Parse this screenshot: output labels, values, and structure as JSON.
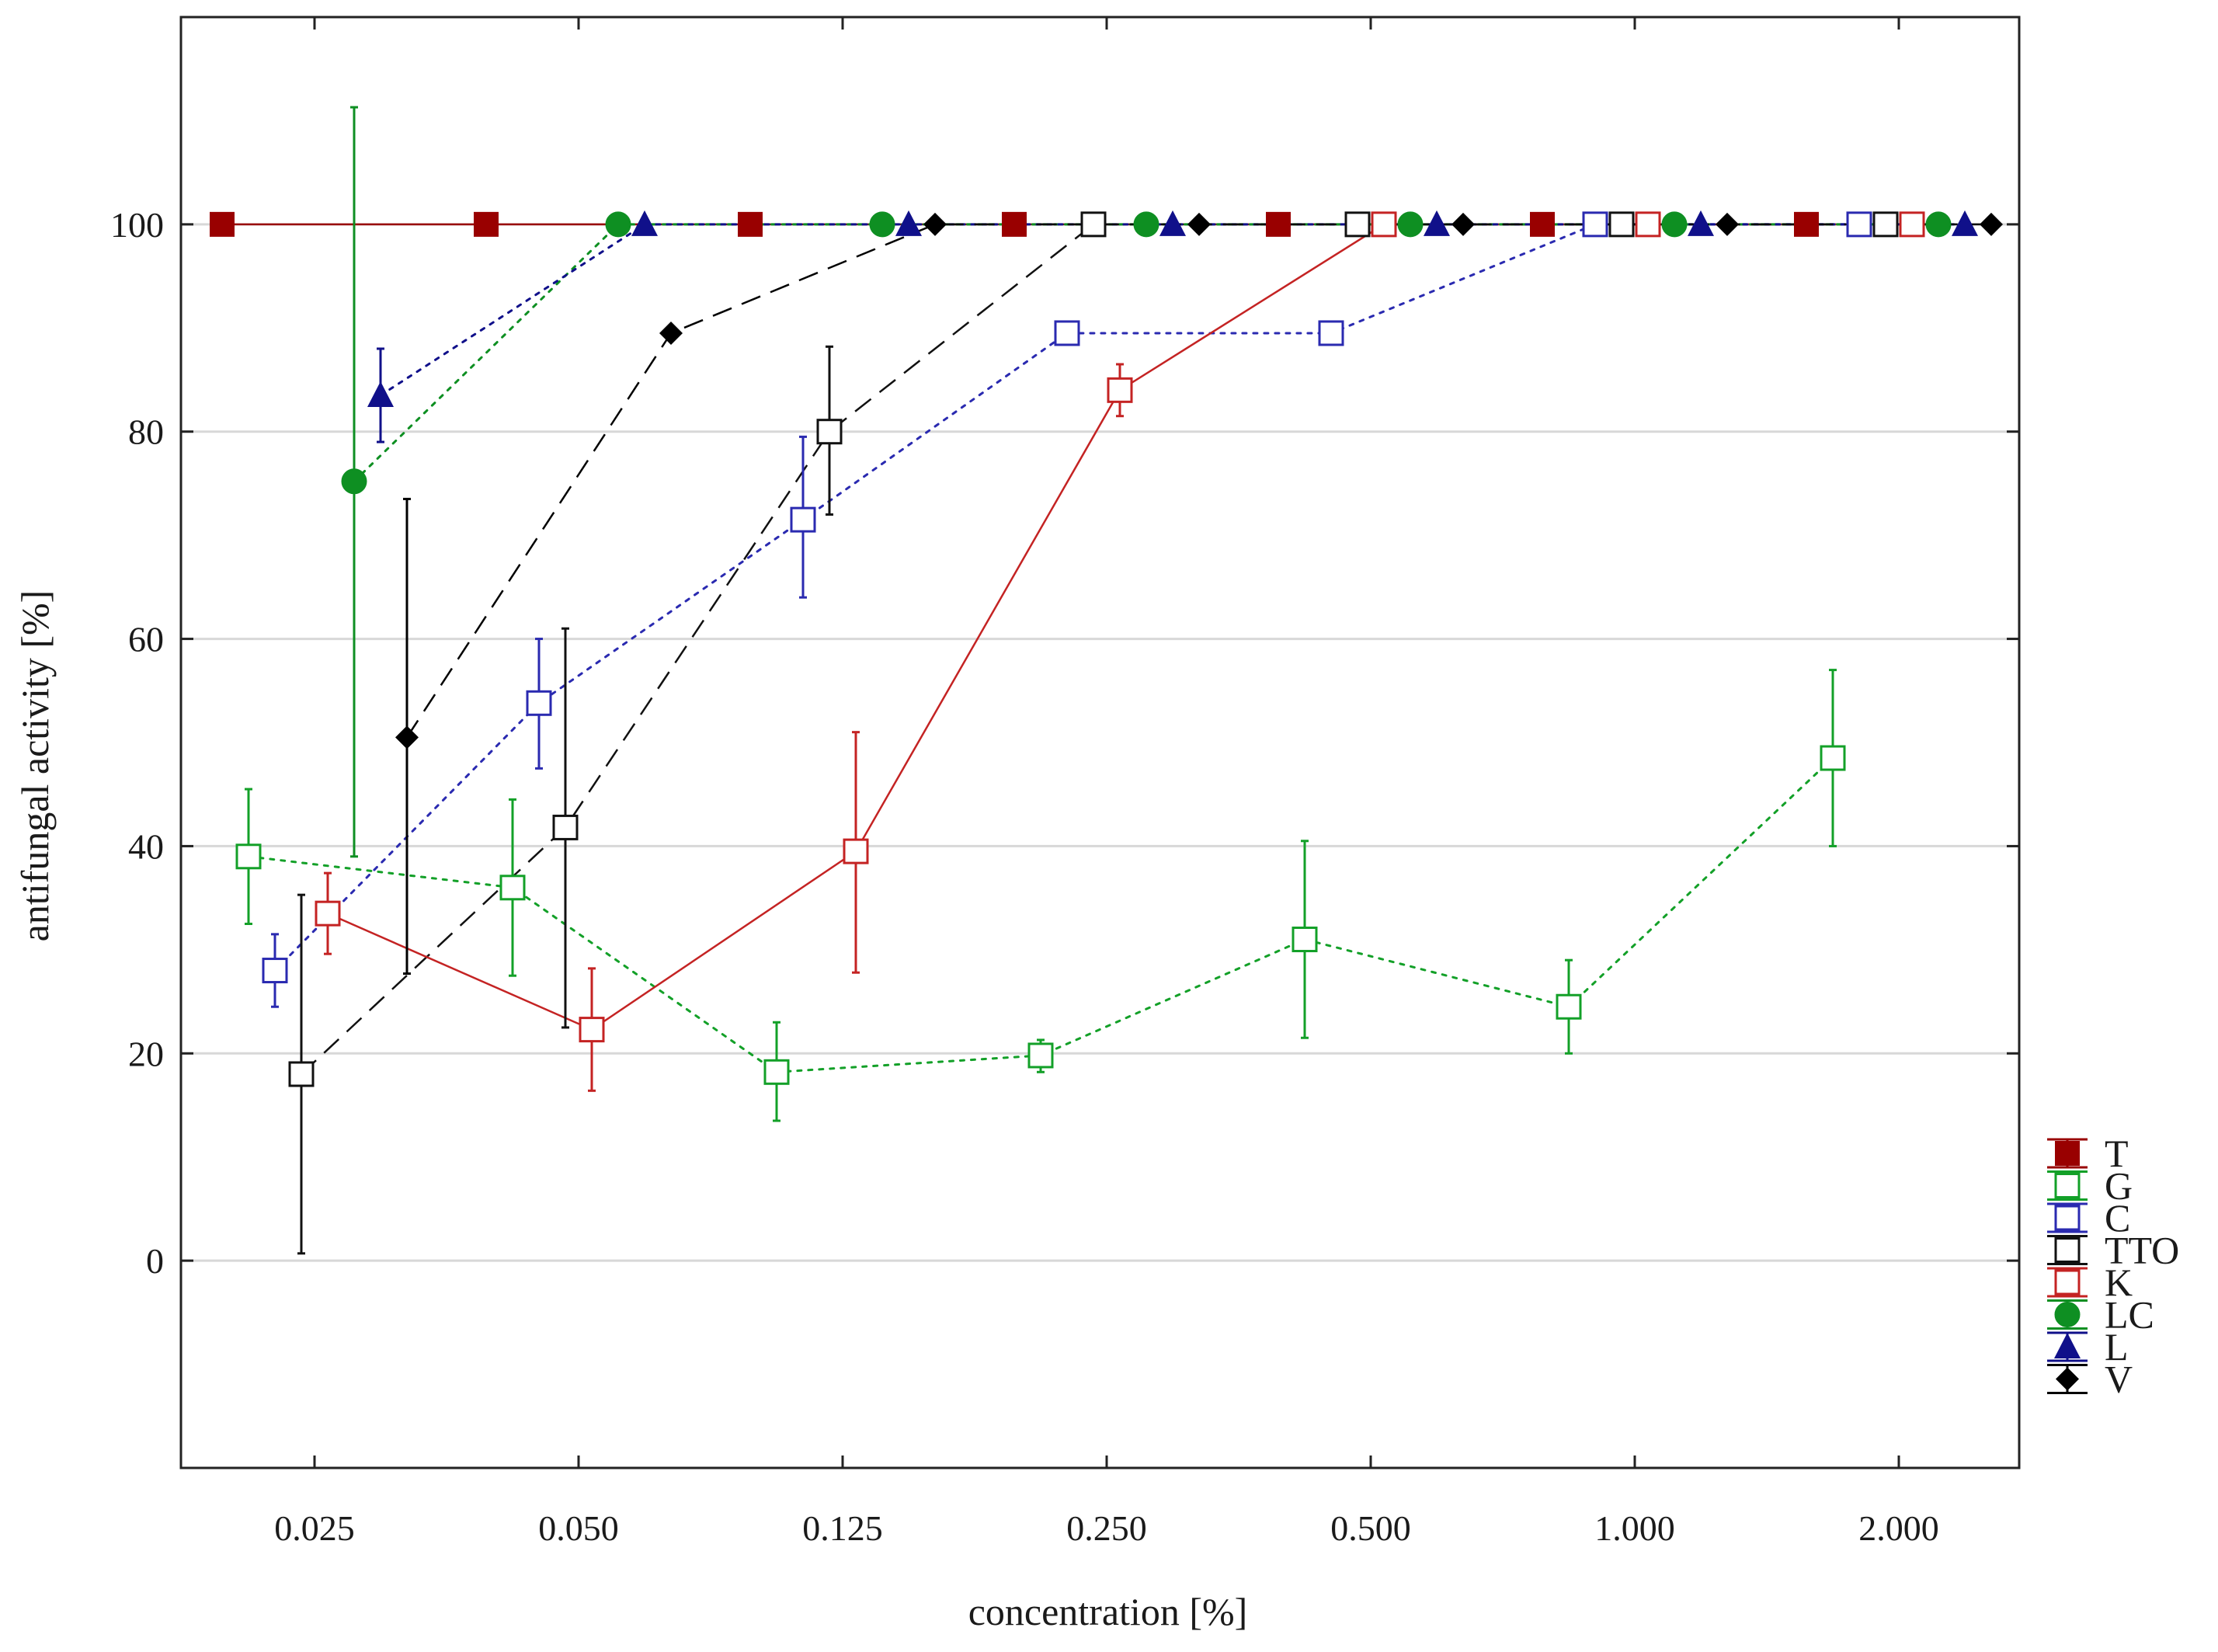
{
  "chart_data": {
    "type": "line",
    "title": "",
    "xlabel": "concentration [%]",
    "ylabel": "antifungal activity [%]",
    "ylim": [
      -20,
      120
    ],
    "yticks": [
      0,
      20,
      40,
      60,
      80,
      100
    ],
    "categories": [
      "0.025",
      "0.050",
      "0.125",
      "0.250",
      "0.500",
      "1.000",
      "2.000"
    ],
    "grid": "horizontal",
    "legend_position": "right-bottom",
    "series": [
      {
        "name": "T",
        "color": "#990000",
        "marker": "square-filled",
        "line": "solid",
        "offset": -0.35,
        "values": [
          100,
          100,
          100,
          100,
          100,
          100,
          100
        ],
        "err_low": [
          100,
          100,
          100,
          100,
          100,
          100,
          100
        ],
        "err_high": [
          100,
          100,
          100,
          100,
          100,
          100,
          100
        ]
      },
      {
        "name": "G",
        "color": "#13a028",
        "marker": "square-open",
        "line": "dotted",
        "offset": -0.25,
        "values": [
          39,
          36,
          18.2,
          19.8,
          31,
          24.5,
          48.5
        ],
        "err_low": [
          32.5,
          27.5,
          13.5,
          18.2,
          21.5,
          20,
          40
        ],
        "err_high": [
          45.5,
          44.5,
          23,
          21.3,
          40.5,
          29,
          57
        ]
      },
      {
        "name": "C",
        "color": "#2a2ab0",
        "marker": "square-open",
        "line": "dotted",
        "offset": -0.15,
        "values": [
          28,
          53.8,
          71.5,
          89.5,
          89.5,
          100,
          100
        ],
        "err_low": [
          24.5,
          47.5,
          64,
          89.5,
          89.5,
          100,
          100
        ],
        "err_high": [
          31.5,
          60,
          79.5,
          89.5,
          89.5,
          100,
          100
        ]
      },
      {
        "name": "TTO",
        "color": "#111111",
        "marker": "square-open",
        "line": "dashed",
        "offset": -0.05,
        "values": [
          18,
          41.8,
          80,
          100,
          100,
          100,
          100
        ],
        "err_low": [
          0.7,
          22.5,
          72,
          100,
          100,
          100,
          100
        ],
        "err_high": [
          35.3,
          61,
          88.2,
          100,
          100,
          100,
          100
        ]
      },
      {
        "name": "K",
        "color": "#c42323",
        "marker": "square-open",
        "line": "solid",
        "offset": 0.05,
        "values": [
          33.5,
          22.3,
          39.5,
          84,
          100,
          100,
          100
        ],
        "err_low": [
          29.6,
          16.4,
          27.8,
          81.5,
          100,
          100,
          100
        ],
        "err_high": [
          37.4,
          28.2,
          51,
          86.5,
          100,
          100,
          100
        ]
      },
      {
        "name": "LC",
        "color": "#0e8f22",
        "marker": "circle-filled",
        "line": "dotted",
        "offset": 0.15,
        "values": [
          75.2,
          100,
          100,
          100,
          100,
          100,
          100
        ],
        "err_low": [
          39,
          100,
          100,
          100,
          100,
          100,
          100
        ],
        "err_high": [
          111.3,
          100,
          100,
          100,
          100,
          100,
          100
        ]
      },
      {
        "name": "L",
        "color": "#10108a",
        "marker": "triangle-filled",
        "line": "dotted",
        "offset": 0.25,
        "values": [
          83.5,
          100,
          100,
          100,
          100,
          100,
          100
        ],
        "err_low": [
          79,
          100,
          100,
          100,
          100,
          100,
          100
        ],
        "err_high": [
          88,
          100,
          100,
          100,
          100,
          100,
          100
        ]
      },
      {
        "name": "V",
        "color": "#000000",
        "marker": "diamond-filled",
        "line": "dashed",
        "offset": 0.35,
        "values": [
          50.5,
          89.5,
          100,
          100,
          100,
          100,
          100
        ],
        "err_low": [
          27.7,
          89.5,
          100,
          100,
          100,
          100,
          100
        ],
        "err_high": [
          73.5,
          89.5,
          100,
          100,
          100,
          100,
          100
        ]
      }
    ]
  }
}
